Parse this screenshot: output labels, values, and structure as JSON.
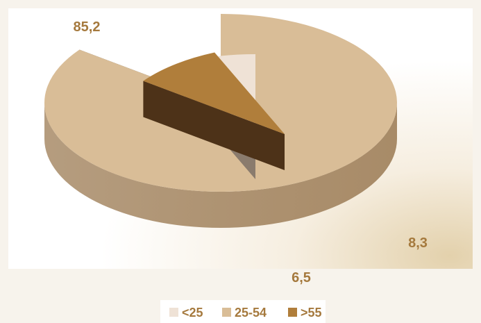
{
  "chart_data": {
    "type": "pie",
    "style": "3d-exploded",
    "categories": [
      "<25",
      "25-54",
      ">55"
    ],
    "values": [
      6.5,
      85.2,
      8.3
    ],
    "value_labels": [
      "6,5",
      "85,2",
      "8,3"
    ],
    "colors": [
      "#efe2d6",
      "#d9bd97",
      "#b07e3b"
    ],
    "side_colors": [
      "#8a7b6d",
      "#a88b68",
      "#4d3218"
    ],
    "inner_side_color": "#5a4a3b",
    "label_color": "#a5793d",
    "legend": {
      "position": "bottom"
    }
  }
}
